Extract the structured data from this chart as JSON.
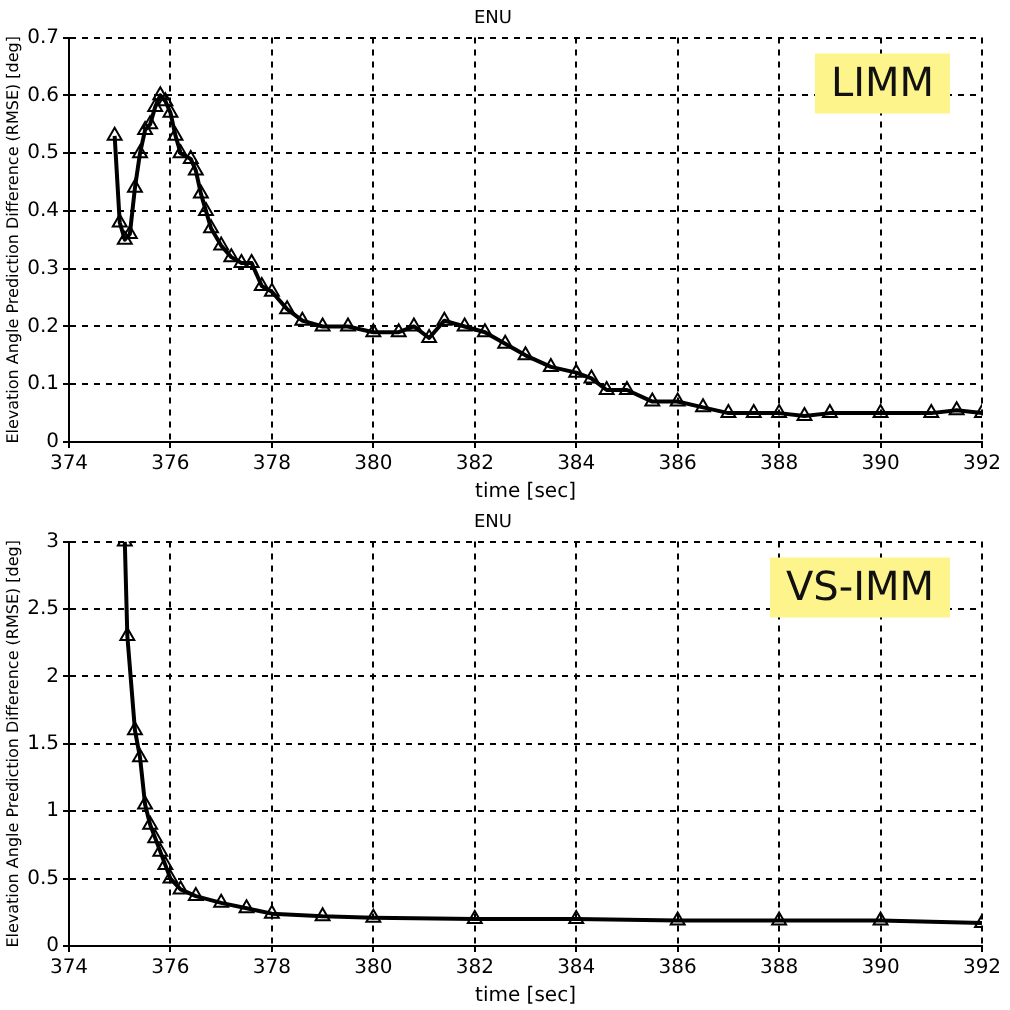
{
  "chart_data": [
    {
      "type": "line",
      "title": "ENU",
      "xlabel": "time [sec]",
      "ylabel": "Elevation Angle Prediction Difference (RMSE) [deg]",
      "annotations": [
        "LIMM"
      ],
      "marker": "triangle",
      "line_style": "solid",
      "grid": true,
      "legend": false,
      "xlim": [
        374,
        392
      ],
      "xticks": [
        374,
        376,
        378,
        380,
        382,
        384,
        386,
        388,
        390,
        392
      ],
      "ylim": [
        0,
        0.7
      ],
      "yticks": [
        0,
        0.1,
        0.2,
        0.3,
        0.4,
        0.5,
        0.6,
        0.7
      ],
      "x": [
        374.9,
        375.0,
        375.1,
        375.2,
        375.3,
        375.4,
        375.5,
        375.6,
        375.7,
        375.8,
        375.9,
        376.0,
        376.1,
        376.2,
        376.4,
        376.5,
        376.6,
        376.7,
        376.8,
        377.0,
        377.2,
        377.4,
        377.6,
        377.8,
        378.0,
        378.3,
        378.6,
        379.0,
        379.5,
        380.0,
        380.5,
        380.8,
        381.1,
        381.4,
        381.8,
        382.2,
        382.6,
        383.0,
        383.5,
        384.0,
        384.3,
        384.6,
        385.0,
        385.5,
        386.0,
        386.5,
        387.0,
        387.5,
        388.0,
        388.5,
        389.0,
        390.0,
        391.0,
        391.5,
        392.0
      ],
      "series": [
        {
          "color": "#000000",
          "values": [
            0.53,
            0.38,
            0.35,
            0.36,
            0.44,
            0.5,
            0.54,
            0.55,
            0.58,
            0.6,
            0.59,
            0.57,
            0.53,
            0.5,
            0.49,
            0.47,
            0.43,
            0.4,
            0.37,
            0.34,
            0.32,
            0.31,
            0.31,
            0.27,
            0.26,
            0.23,
            0.21,
            0.2,
            0.2,
            0.19,
            0.19,
            0.2,
            0.18,
            0.21,
            0.2,
            0.19,
            0.17,
            0.15,
            0.13,
            0.12,
            0.11,
            0.09,
            0.09,
            0.07,
            0.07,
            0.06,
            0.05,
            0.05,
            0.05,
            0.045,
            0.05,
            0.05,
            0.05,
            0.055,
            0.05
          ]
        }
      ]
    },
    {
      "type": "line",
      "title": "ENU",
      "xlabel": "time [sec]",
      "ylabel": "Elevation Angle Prediction Difference (RMSE) [deg]",
      "annotations": [
        "VS-IMM"
      ],
      "marker": "triangle",
      "line_style": "solid",
      "grid": true,
      "legend": false,
      "xlim": [
        374,
        392
      ],
      "xticks": [
        374,
        376,
        378,
        380,
        382,
        384,
        386,
        388,
        390,
        392
      ],
      "ylim": [
        0,
        3
      ],
      "yticks": [
        0,
        0.5,
        1,
        1.5,
        2,
        2.5,
        3
      ],
      "x": [
        375.1,
        375.15,
        375.3,
        375.4,
        375.5,
        375.6,
        375.7,
        375.8,
        375.9,
        376.0,
        376.2,
        376.5,
        377.0,
        377.5,
        378.0,
        379.0,
        380.0,
        382.0,
        384.0,
        386.0,
        388.0,
        390.0,
        392.0
      ],
      "series": [
        {
          "color": "#000000",
          "values": [
            3.0,
            2.3,
            1.6,
            1.4,
            1.05,
            0.9,
            0.8,
            0.7,
            0.6,
            0.5,
            0.42,
            0.37,
            0.32,
            0.28,
            0.24,
            0.22,
            0.21,
            0.2,
            0.2,
            0.19,
            0.19,
            0.19,
            0.17
          ]
        }
      ]
    }
  ]
}
